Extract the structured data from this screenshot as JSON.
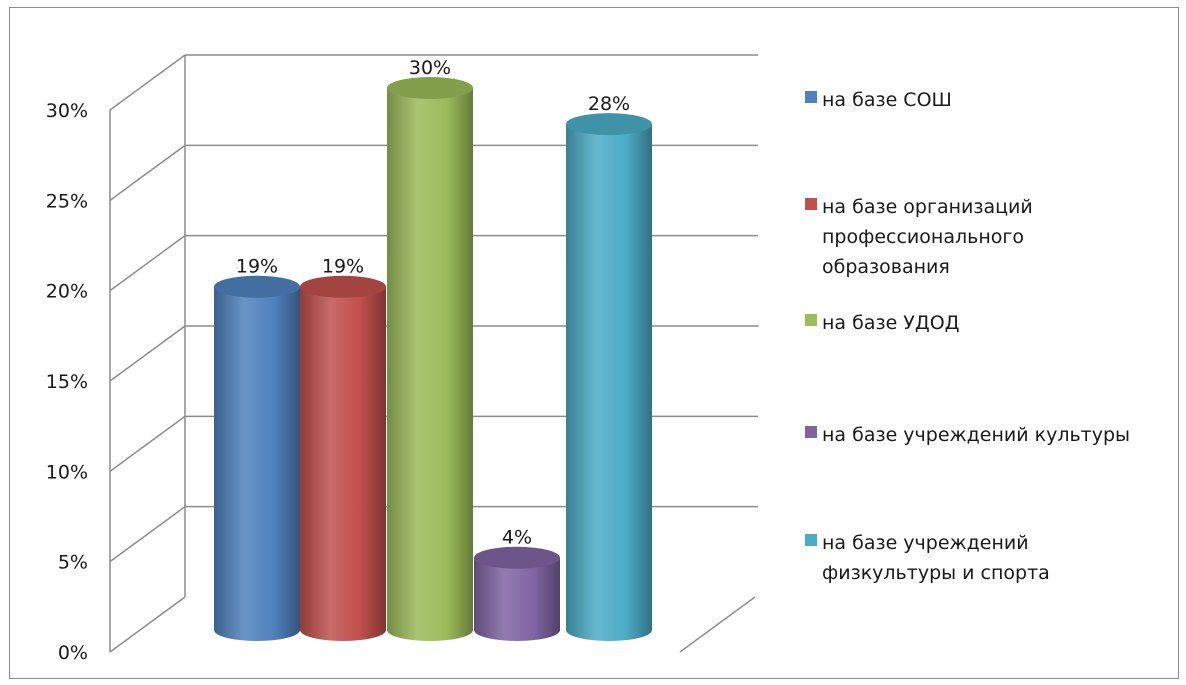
{
  "chart_data": {
    "type": "bar",
    "style": "3d-cylinder",
    "categories": [
      "на базе СОШ",
      "на базе организаций профессионального образования",
      "на базе УДОД",
      "на базе учреждений культуры",
      "на базе учреждений физкультуры и спорта"
    ],
    "values": [
      19,
      19,
      30,
      4,
      28
    ],
    "data_labels": [
      "19%",
      "19%",
      "30%",
      "4%",
      "28%"
    ],
    "colors": [
      "#4f81bd",
      "#c0504d",
      "#9bbb59",
      "#8064a2",
      "#4bacc6"
    ],
    "y_ticks": [
      "0%",
      "5%",
      "10%",
      "15%",
      "20%",
      "25%",
      "30%"
    ],
    "ylim": [
      0,
      30
    ],
    "grid": true,
    "legend_position": "right",
    "legend": [
      "на базе СОШ",
      "на базе организаций\nпрофессионального\nобразования",
      "на базе УДОД",
      "на базе учреждений культуры",
      "на базе учреждений\nфизкультуры и спорта"
    ]
  }
}
